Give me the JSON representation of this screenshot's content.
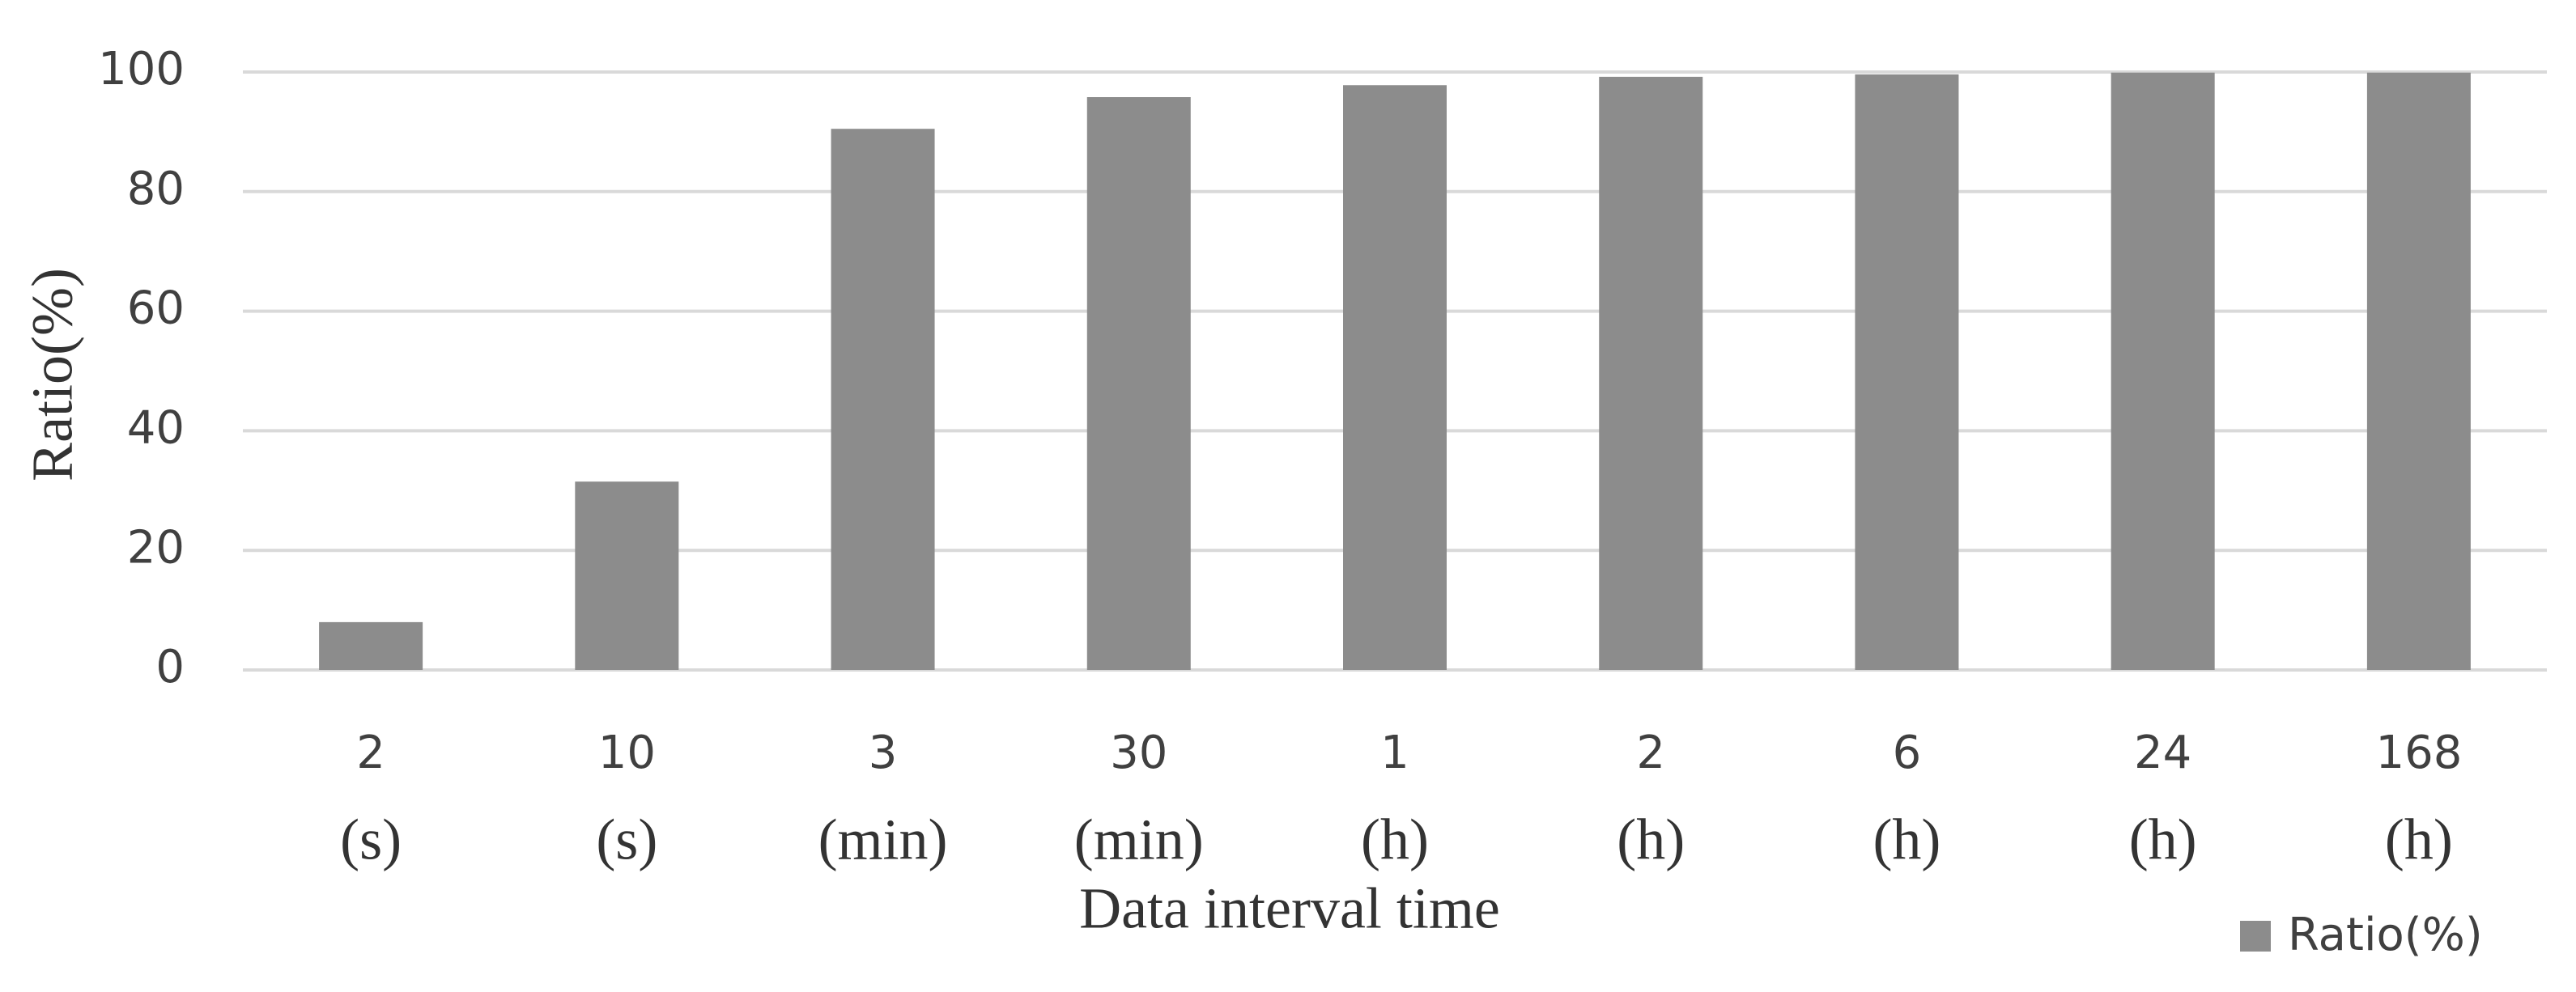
{
  "chart_data": {
    "type": "bar",
    "x_label": "Data interval time",
    "y_label": "Ratio(%)",
    "categories": [
      "2",
      "10",
      "3",
      "30",
      "1",
      "2",
      "6",
      "24",
      "168"
    ],
    "category_units": [
      "(s)",
      "(s)",
      "(min)",
      "(min)",
      "(h)",
      "(h)",
      "(h)",
      "(h)",
      "(h)"
    ],
    "series": [
      {
        "name": "Ratio(%)",
        "color": "#8c8c8c",
        "values": [
          8,
          31.5,
          90.5,
          95.8,
          97.8,
          99.2,
          99.6,
          99.9,
          99.9
        ]
      }
    ],
    "ylim": [
      0,
      100
    ],
    "yticks": [
      0,
      20,
      40,
      60,
      80,
      100
    ],
    "grid": true,
    "legend": "bottom-right"
  }
}
